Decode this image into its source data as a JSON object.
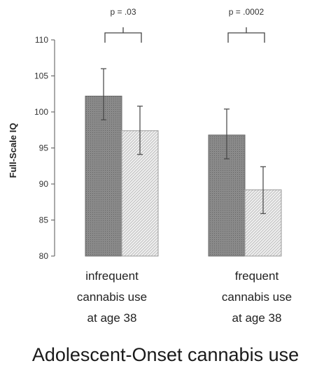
{
  "chart_data": {
    "type": "bar",
    "title": "",
    "xlabel": "Adolescent-Onset cannabis use",
    "ylabel": "Full-Scale IQ",
    "ylim": [
      80,
      110
    ],
    "yticks": [
      "80",
      "85",
      "90",
      "95",
      "100",
      "105",
      "110"
    ],
    "categories": [
      [
        "infrequent",
        "cannabis use",
        "at age 38"
      ],
      [
        "frequent",
        "cannabis use",
        "at age 38"
      ]
    ],
    "series": [
      {
        "values": [
          102.2,
          96.8
        ],
        "err_low": [
          98.9,
          93.5
        ],
        "err_high": [
          106.0,
          100.4
        ],
        "color": "#7f7f7f"
      },
      {
        "values": [
          97.4,
          89.2
        ],
        "err_low": [
          94.1,
          85.9
        ],
        "err_high": [
          100.8,
          92.4
        ],
        "color": "#e2e2e2"
      }
    ],
    "annotations": [
      "p = .03",
      "p = .0002"
    ],
    "legend": "none",
    "grid": false
  }
}
